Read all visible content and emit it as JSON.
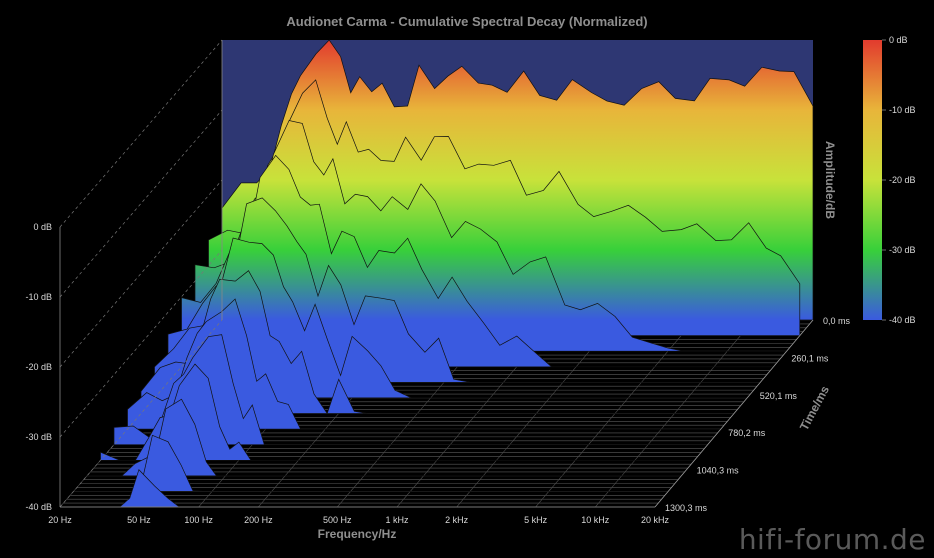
{
  "chart_data": {
    "type": "waterfall-3d",
    "title": "Audionet Carma - Cumulative Spectral Decay (Normalized)",
    "xlabel": "Frequency/Hz",
    "ylabel": "Time/ms",
    "zlabel": "Amplitude/dB",
    "x_ticks": [
      "20 Hz",
      "50 Hz",
      "100 Hz",
      "200 Hz",
      "500 Hz",
      "1 kHz",
      "2 kHz",
      "5 kHz",
      "10 kHz",
      "20 kHz"
    ],
    "x_tick_values": [
      20,
      50,
      100,
      200,
      500,
      1000,
      2000,
      5000,
      10000,
      20000
    ],
    "time_ticks": [
      "0,0 ms",
      "260,1 ms",
      "520,1 ms",
      "780,2 ms",
      "1040,3 ms",
      "1300,3 ms"
    ],
    "time_tick_values": [
      0.0,
      260.1,
      520.1,
      780.2,
      1040.3,
      1300.3
    ],
    "z_ticks": [
      "0 dB",
      "-10 dB",
      "-20 dB",
      "-30 dB",
      "-40 dB"
    ],
    "z_tick_values": [
      0,
      -10,
      -20,
      -30,
      -40
    ],
    "colorbar_ticks": [
      "0 dB",
      "-10 dB",
      "-20 dB",
      "-30 dB",
      "-40 dB"
    ],
    "colorbar_colors": [
      "#e23b2e",
      "#e8b53a",
      "#c8e23a",
      "#38d03a",
      "#3a5ae0"
    ],
    "xlim": [
      20,
      20000
    ],
    "zlim": [
      -40,
      0
    ],
    "time_range": [
      0.0,
      1300.3
    ],
    "slice_count": 13,
    "profile_freqs": [
      20,
      25,
      30,
      35,
      40,
      45,
      50,
      60,
      70,
      80,
      90,
      100,
      115,
      130,
      150,
      175,
      200,
      240,
      280,
      330,
      400,
      470,
      560,
      680,
      820,
      1000,
      1200,
      1500,
      1800,
      2200,
      2700,
      3300,
      4000,
      5000,
      6000,
      7500,
      9000,
      11000,
      13500,
      16000,
      20000
    ],
    "front_profile_db": [
      -24,
      -22,
      -20,
      -17,
      -13,
      -9,
      -4,
      -1,
      0,
      -3,
      -6,
      -5,
      -9,
      -6,
      -8,
      -10,
      -5,
      -6,
      -4,
      -5,
      -7,
      -5,
      -7,
      -6,
      -8,
      -7,
      -6,
      -9,
      -8,
      -8,
      -8,
      -7,
      -7,
      -8,
      -7,
      -6,
      -5,
      -4,
      -6,
      -4,
      -8
    ]
  },
  "watermark": "hifi-forum.de"
}
